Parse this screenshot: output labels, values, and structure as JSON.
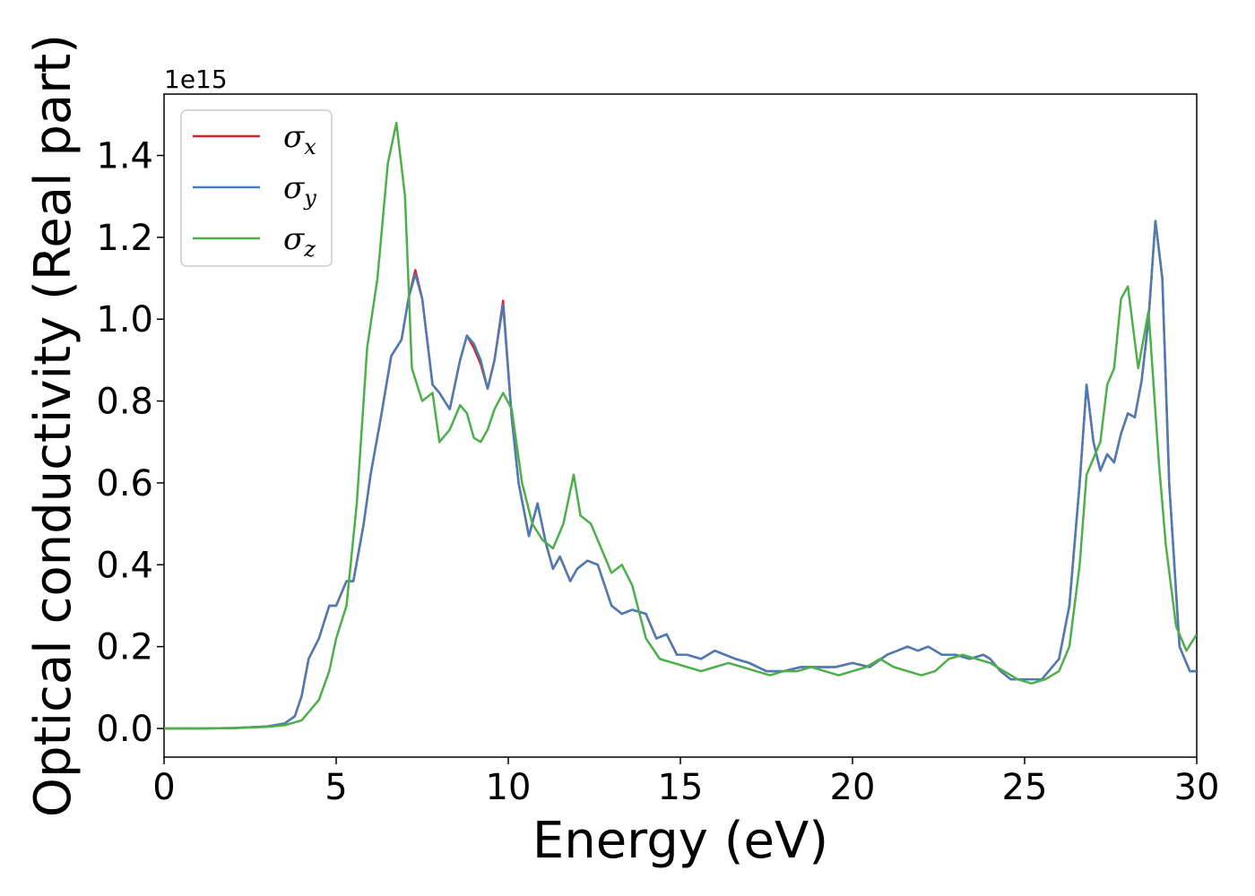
{
  "chart_data": {
    "type": "line",
    "title": "",
    "xlabel": "Energy (eV)",
    "ylabel": "Optical conductivity (Real part)",
    "y_offset_label": "1e15",
    "xlim": [
      0,
      30
    ],
    "ylim": [
      -0.07,
      1.55
    ],
    "xticks": [
      0,
      5,
      10,
      15,
      20,
      25,
      30
    ],
    "yticks": [
      0.0,
      0.2,
      0.4,
      0.6,
      0.8,
      1.0,
      1.2,
      1.4
    ],
    "xtick_labels": [
      "0",
      "5",
      "10",
      "15",
      "20",
      "25",
      "30"
    ],
    "ytick_labels": [
      "0.0",
      "0.2",
      "0.4",
      "0.6",
      "0.8",
      "1.0",
      "1.2",
      "1.4"
    ],
    "grid": false,
    "legend": "top-left",
    "series": [
      {
        "name": "σx",
        "symbol": "σ",
        "subscript": "x",
        "color": "#d62728",
        "x": [
          0,
          1,
          2,
          3,
          3.5,
          3.8,
          4.0,
          4.2,
          4.5,
          4.8,
          5.0,
          5.3,
          5.5,
          5.8,
          6.0,
          6.3,
          6.6,
          6.9,
          7.1,
          7.3,
          7.5,
          7.8,
          8.0,
          8.3,
          8.6,
          8.8,
          9.0,
          9.2,
          9.4,
          9.6,
          9.85,
          10.1,
          10.3,
          10.6,
          10.85,
          11.1,
          11.3,
          11.5,
          11.8,
          12.0,
          12.3,
          12.6,
          13.0,
          13.3,
          13.6,
          14.0,
          14.3,
          14.6,
          14.9,
          15.2,
          15.6,
          16.0,
          16.3,
          16.6,
          17.0,
          17.5,
          18.0,
          18.5,
          19.0,
          19.5,
          20.0,
          20.5,
          21.0,
          21.3,
          21.6,
          21.9,
          22.2,
          22.6,
          23.0,
          23.4,
          23.8,
          24.0,
          24.3,
          24.6,
          25.0,
          25.5,
          26.0,
          26.3,
          26.6,
          26.8,
          27.0,
          27.2,
          27.4,
          27.6,
          27.8,
          28.0,
          28.2,
          28.4,
          28.6,
          28.8,
          29.0,
          29.2,
          29.5,
          29.8,
          30.0
        ],
        "values": [
          0.0,
          0.0,
          0.001,
          0.005,
          0.012,
          0.03,
          0.08,
          0.17,
          0.22,
          0.3,
          0.3,
          0.36,
          0.36,
          0.5,
          0.62,
          0.76,
          0.91,
          0.95,
          1.05,
          1.12,
          1.05,
          0.84,
          0.82,
          0.78,
          0.9,
          0.96,
          0.93,
          0.89,
          0.83,
          0.9,
          1.045,
          0.76,
          0.6,
          0.47,
          0.55,
          0.45,
          0.39,
          0.42,
          0.36,
          0.39,
          0.41,
          0.4,
          0.3,
          0.28,
          0.29,
          0.28,
          0.22,
          0.23,
          0.18,
          0.18,
          0.17,
          0.19,
          0.18,
          0.17,
          0.16,
          0.14,
          0.14,
          0.15,
          0.15,
          0.15,
          0.16,
          0.15,
          0.18,
          0.19,
          0.2,
          0.19,
          0.2,
          0.18,
          0.18,
          0.17,
          0.18,
          0.17,
          0.14,
          0.12,
          0.12,
          0.12,
          0.17,
          0.3,
          0.6,
          0.84,
          0.7,
          0.63,
          0.67,
          0.65,
          0.72,
          0.77,
          0.76,
          0.85,
          1.0,
          1.24,
          1.1,
          0.6,
          0.2,
          0.14,
          0.14
        ]
      },
      {
        "name": "σy",
        "symbol": "σ",
        "subscript": "y",
        "color": "#4a7cb5",
        "x": [
          0,
          1,
          2,
          3,
          3.5,
          3.8,
          4.0,
          4.2,
          4.5,
          4.8,
          5.0,
          5.3,
          5.5,
          5.8,
          6.0,
          6.3,
          6.6,
          6.9,
          7.1,
          7.3,
          7.5,
          7.8,
          8.0,
          8.3,
          8.6,
          8.8,
          9.0,
          9.2,
          9.4,
          9.6,
          9.85,
          10.1,
          10.3,
          10.6,
          10.85,
          11.1,
          11.3,
          11.5,
          11.8,
          12.0,
          12.3,
          12.6,
          13.0,
          13.3,
          13.6,
          14.0,
          14.3,
          14.6,
          14.9,
          15.2,
          15.6,
          16.0,
          16.3,
          16.6,
          17.0,
          17.5,
          18.0,
          18.5,
          19.0,
          19.5,
          20.0,
          20.5,
          21.0,
          21.3,
          21.6,
          21.9,
          22.2,
          22.6,
          23.0,
          23.4,
          23.8,
          24.0,
          24.3,
          24.6,
          25.0,
          25.5,
          26.0,
          26.3,
          26.6,
          26.8,
          27.0,
          27.2,
          27.4,
          27.6,
          27.8,
          28.0,
          28.2,
          28.4,
          28.6,
          28.8,
          29.0,
          29.2,
          29.5,
          29.8,
          30.0
        ],
        "values": [
          0.0,
          0.0,
          0.001,
          0.005,
          0.012,
          0.03,
          0.08,
          0.17,
          0.22,
          0.3,
          0.3,
          0.36,
          0.36,
          0.5,
          0.62,
          0.76,
          0.91,
          0.95,
          1.05,
          1.11,
          1.05,
          0.84,
          0.82,
          0.78,
          0.9,
          0.96,
          0.94,
          0.9,
          0.83,
          0.9,
          1.035,
          0.76,
          0.6,
          0.47,
          0.55,
          0.45,
          0.39,
          0.42,
          0.36,
          0.39,
          0.41,
          0.4,
          0.3,
          0.28,
          0.29,
          0.28,
          0.22,
          0.23,
          0.18,
          0.18,
          0.17,
          0.19,
          0.18,
          0.17,
          0.16,
          0.14,
          0.14,
          0.15,
          0.15,
          0.15,
          0.16,
          0.15,
          0.18,
          0.19,
          0.2,
          0.19,
          0.2,
          0.18,
          0.18,
          0.17,
          0.18,
          0.17,
          0.14,
          0.12,
          0.12,
          0.12,
          0.17,
          0.3,
          0.6,
          0.84,
          0.7,
          0.63,
          0.67,
          0.65,
          0.72,
          0.77,
          0.76,
          0.85,
          1.0,
          1.24,
          1.1,
          0.6,
          0.2,
          0.14,
          0.14
        ]
      },
      {
        "name": "σz",
        "symbol": "σ",
        "subscript": "z",
        "color": "#4daf4a",
        "x": [
          0,
          1,
          2,
          3,
          3.5,
          3.8,
          4.0,
          4.2,
          4.5,
          4.8,
          5.0,
          5.3,
          5.6,
          5.9,
          6.2,
          6.5,
          6.75,
          7.0,
          7.2,
          7.5,
          7.8,
          8.0,
          8.3,
          8.6,
          8.8,
          9.0,
          9.2,
          9.4,
          9.6,
          9.85,
          10.1,
          10.4,
          10.7,
          11.0,
          11.3,
          11.6,
          11.9,
          12.1,
          12.4,
          12.7,
          13.0,
          13.3,
          13.6,
          14.0,
          14.4,
          14.8,
          15.2,
          15.6,
          16.0,
          16.4,
          16.8,
          17.2,
          17.6,
          18.0,
          18.4,
          18.8,
          19.2,
          19.6,
          20.0,
          20.4,
          20.8,
          21.2,
          21.6,
          22.0,
          22.4,
          22.8,
          23.2,
          23.6,
          24.0,
          24.4,
          24.8,
          25.2,
          25.6,
          26.0,
          26.3,
          26.6,
          26.8,
          27.0,
          27.2,
          27.4,
          27.6,
          27.8,
          28.0,
          28.3,
          28.6,
          28.9,
          29.1,
          29.4,
          29.7,
          30.0
        ],
        "values": [
          0.0,
          0.0,
          0.001,
          0.004,
          0.008,
          0.015,
          0.02,
          0.04,
          0.07,
          0.14,
          0.22,
          0.3,
          0.55,
          0.93,
          1.1,
          1.38,
          1.48,
          1.3,
          0.88,
          0.8,
          0.82,
          0.7,
          0.73,
          0.79,
          0.77,
          0.71,
          0.7,
          0.73,
          0.78,
          0.82,
          0.78,
          0.6,
          0.5,
          0.46,
          0.44,
          0.5,
          0.62,
          0.52,
          0.5,
          0.44,
          0.38,
          0.4,
          0.35,
          0.22,
          0.17,
          0.16,
          0.15,
          0.14,
          0.15,
          0.16,
          0.15,
          0.14,
          0.13,
          0.14,
          0.14,
          0.15,
          0.14,
          0.13,
          0.14,
          0.15,
          0.17,
          0.15,
          0.14,
          0.13,
          0.14,
          0.17,
          0.18,
          0.17,
          0.16,
          0.14,
          0.12,
          0.11,
          0.12,
          0.14,
          0.2,
          0.4,
          0.62,
          0.66,
          0.7,
          0.84,
          0.88,
          1.05,
          1.08,
          0.88,
          1.02,
          0.65,
          0.45,
          0.25,
          0.19,
          0.23
        ]
      }
    ]
  }
}
